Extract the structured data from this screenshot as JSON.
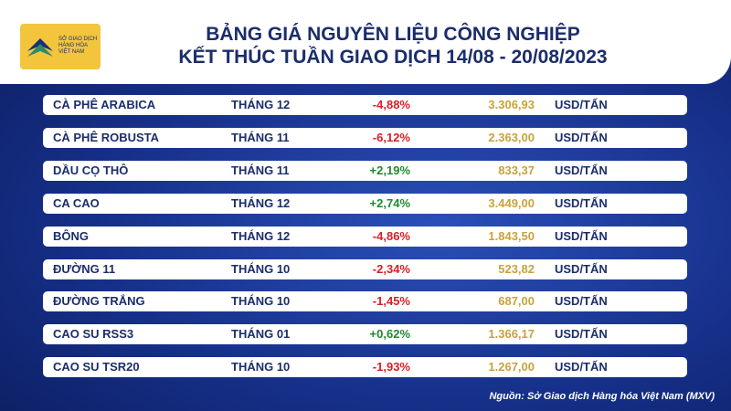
{
  "logo": [
    "SỞ GIAO DỊCH",
    "HÀNG HÓA",
    "VIỆT NAM"
  ],
  "header": {
    "title": [
      "BẢNG GIÁ NGUYÊN LIỆU CÔNG NGHIỆP",
      "KẾT THÚC TUẦN GIAO DỊCH 14/08 - 20/08/2023"
    ]
  },
  "table": {
    "rows": [
      [
        "CÀ PHÊ ARABICA",
        "THÁNG 12",
        "-4,88%",
        "3.306,93",
        "USD/TẤN"
      ],
      [
        "CÀ PHÊ ROBUSTA",
        "THÁNG 11",
        "-6,12%",
        "2.363,00",
        "USD/TẤN"
      ],
      [
        "DẦU CỌ THÔ",
        "THÁNG 11",
        "+2,19%",
        "833,37",
        "USD/TẤN"
      ],
      [
        "CA CAO",
        "THÁNG 12",
        "+2,74%",
        "3.449,00",
        "USD/TẤN"
      ],
      [
        "BÔNG",
        "THÁNG 12",
        "-4,86%",
        "1.843,50",
        "USD/TẤN"
      ],
      [
        "ĐƯỜNG 11",
        "THÁNG 10",
        "-2,34%",
        "523,82",
        "USD/TẤN"
      ],
      [
        "ĐƯỜNG TRẮNG",
        "THÁNG 10",
        "-1,45%",
        "687,00",
        "USD/TẤN"
      ],
      [
        "CAO SU RSS3",
        "THÁNG 01",
        "+0,62%",
        "1.366,17",
        "USD/TẤN"
      ],
      [
        "CAO SU TSR20",
        "THÁNG 10",
        "-1,93%",
        "1.267,00",
        "USD/TẤN"
      ]
    ]
  },
  "source": "Nguồn: Sở Giao dịch Hàng hóa Việt Nam (MXV)"
}
